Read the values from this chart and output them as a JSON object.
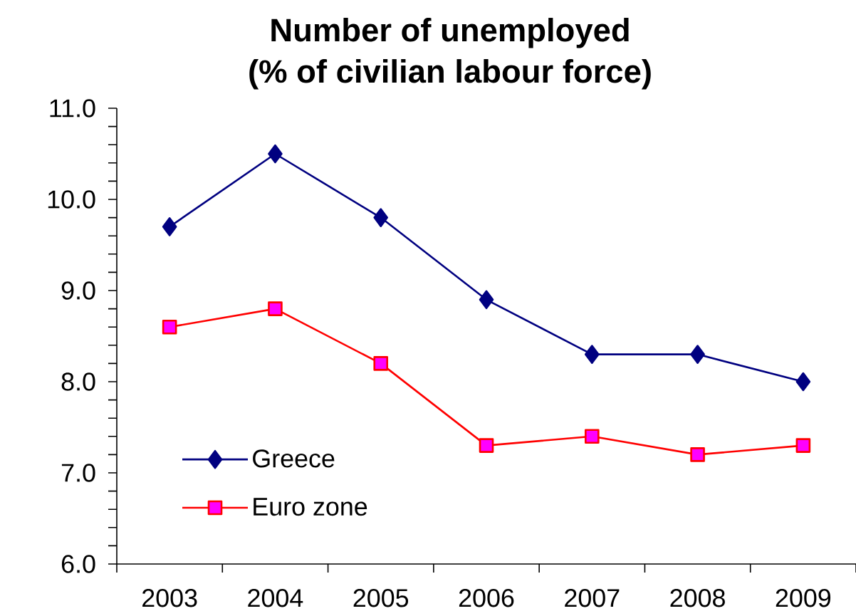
{
  "chart_data": {
    "type": "line",
    "title": "Number of unemployed",
    "subtitle": "(% of civilian labour force)",
    "categories": [
      "2003",
      "2004",
      "2005",
      "2006",
      "2007",
      "2008",
      "2009"
    ],
    "series": [
      {
        "name": "Greece",
        "color": "#000080",
        "marker": "diamond",
        "values": [
          9.7,
          10.5,
          9.8,
          8.9,
          8.3,
          8.3,
          8.0
        ]
      },
      {
        "name": "Euro zone",
        "color": "#ff0000",
        "marker": "square",
        "values": [
          8.6,
          8.8,
          8.2,
          7.3,
          7.4,
          7.2,
          7.3
        ]
      }
    ],
    "ylim": [
      6,
      11
    ],
    "yticks": [
      {
        "value": 6,
        "label": "6.0"
      },
      {
        "value": 6.2,
        "label": null
      },
      {
        "value": 6.4,
        "label": null
      },
      {
        "value": 6.6,
        "label": null
      },
      {
        "value": 6.8,
        "label": null
      },
      {
        "value": 7,
        "label": "7.0"
      },
      {
        "value": 7.2,
        "label": null
      },
      {
        "value": 7.4,
        "label": null
      },
      {
        "value": 7.6,
        "label": null
      },
      {
        "value": 7.8,
        "label": null
      },
      {
        "value": 8,
        "label": "8.0"
      },
      {
        "value": 8.2,
        "label": null
      },
      {
        "value": 8.4,
        "label": null
      },
      {
        "value": 8.6,
        "label": null
      },
      {
        "value": 8.8,
        "label": null
      },
      {
        "value": 9,
        "label": "9.0"
      },
      {
        "value": 9.2,
        "label": null
      },
      {
        "value": 9.4,
        "label": null
      },
      {
        "value": 9.6,
        "label": null
      },
      {
        "value": 9.8,
        "label": null
      },
      {
        "value": 10,
        "label": "10.0"
      },
      {
        "value": 10.2,
        "label": null
      },
      {
        "value": 10.4,
        "label": null
      },
      {
        "value": 10.6,
        "label": null
      },
      {
        "value": 10.8,
        "label": null
      },
      {
        "value": 11,
        "label": "11.0"
      }
    ],
    "legend": "bottom left"
  }
}
